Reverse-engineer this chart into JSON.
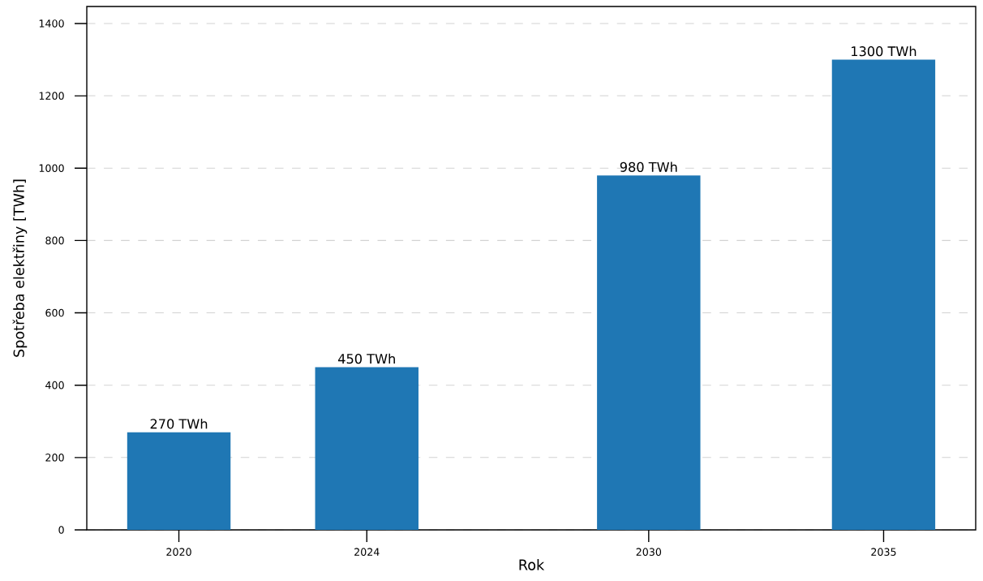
{
  "chart_data": {
    "type": "bar",
    "xlabel": "Rok",
    "ylabel": "Spotřeba elektřiny [TWh]",
    "x": [
      2020,
      2024,
      2030,
      2035
    ],
    "values": [
      270,
      450,
      980,
      1300
    ],
    "value_labels": [
      "270 TWh",
      "450 TWh",
      "980 TWh",
      "1300 TWh"
    ],
    "color": "#1f77b4",
    "xlim": [
      2018.04,
      2036.96
    ],
    "xticks": [
      2020,
      2024,
      2030,
      2035
    ],
    "ylim": [
      0,
      1447
    ],
    "yticks": [
      0,
      200,
      400,
      600,
      800,
      1000,
      1200,
      1400
    ],
    "grid": "y"
  }
}
